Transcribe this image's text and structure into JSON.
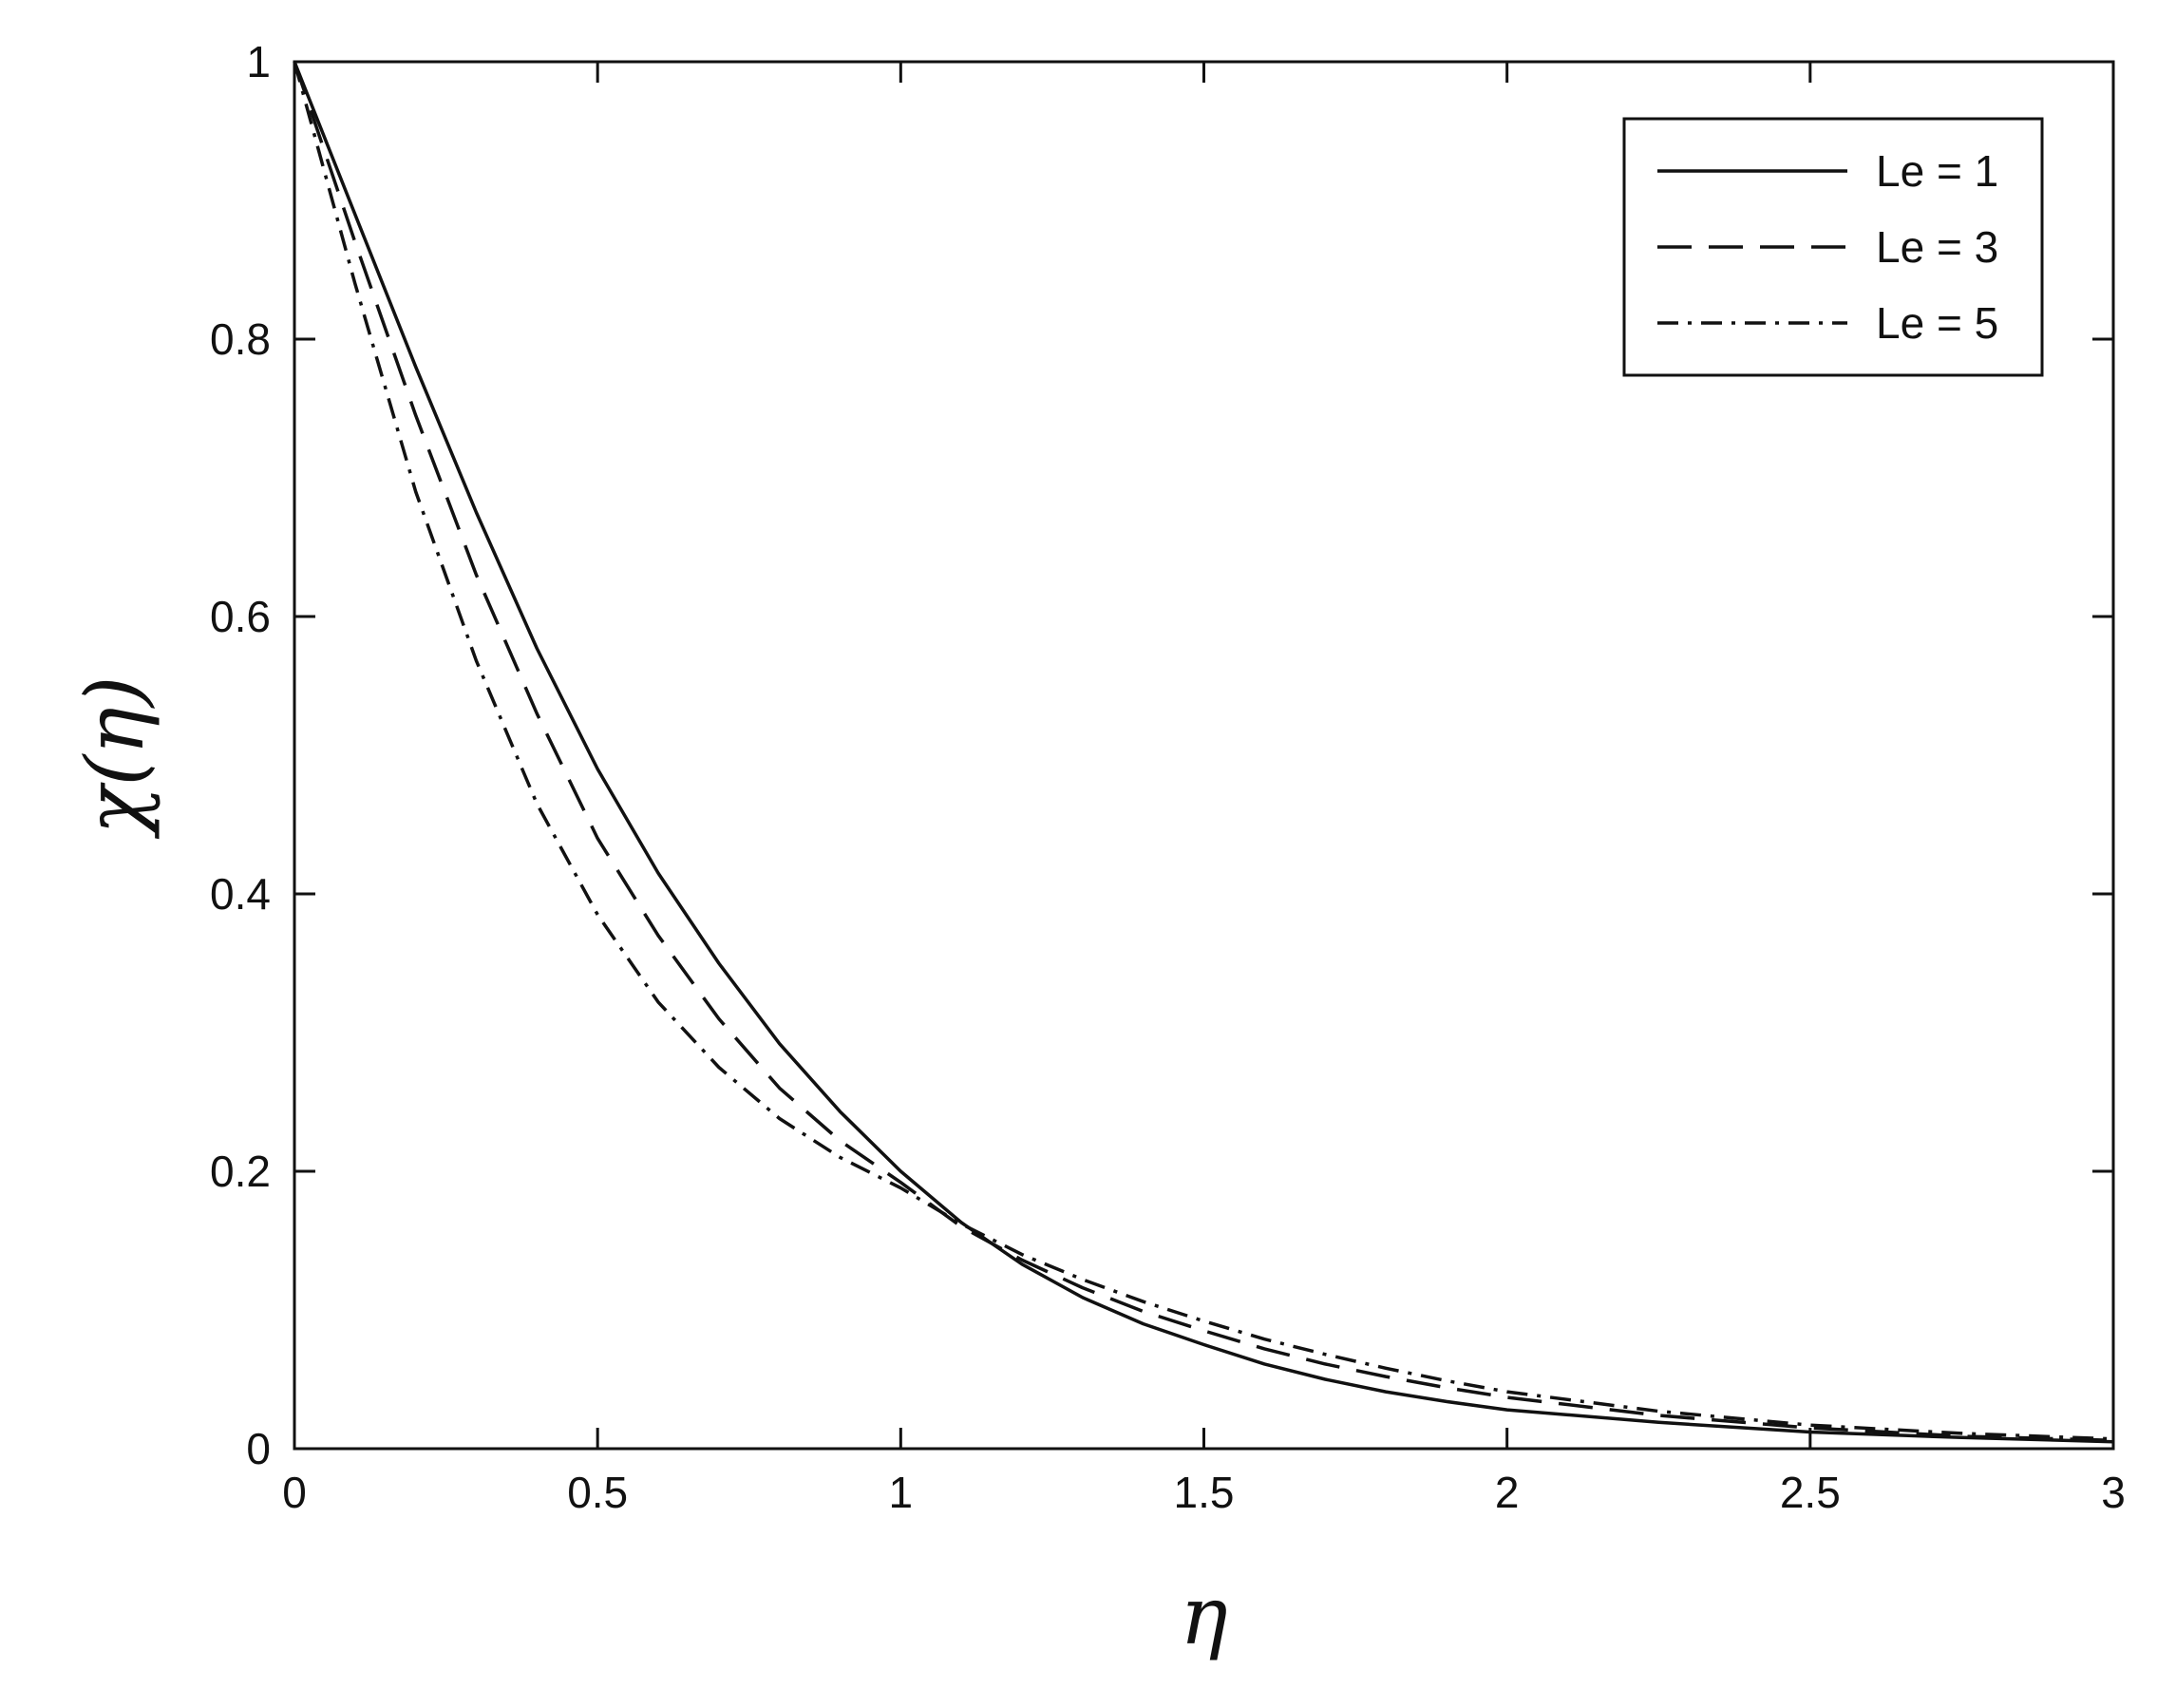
{
  "chart_data": {
    "type": "line",
    "title": "",
    "xlabel": "η",
    "ylabel": "χ(η)",
    "xlim": [
      0,
      3
    ],
    "ylim": [
      0,
      1
    ],
    "grid": false,
    "legend_position": "top-right",
    "x_ticks": [
      "0",
      "0.5",
      "1",
      "1.5",
      "2",
      "2.5",
      "3"
    ],
    "y_ticks": [
      "0",
      "0.2",
      "0.4",
      "0.6",
      "0.8",
      "1"
    ],
    "series": [
      {
        "name": "Le = 1",
        "line_style": "solid",
        "color": "#111111",
        "x": [
          0,
          0.1,
          0.2,
          0.3,
          0.4,
          0.5,
          0.6,
          0.7,
          0.8,
          0.9,
          1.0,
          1.1,
          1.2,
          1.3,
          1.4,
          1.5,
          1.6,
          1.7,
          1.8,
          1.9,
          2.0,
          2.25,
          2.5,
          2.75,
          3.0
        ],
        "y": [
          1.0,
          0.89,
          0.78,
          0.675,
          0.577,
          0.49,
          0.415,
          0.35,
          0.292,
          0.243,
          0.2,
          0.163,
          0.133,
          0.109,
          0.09,
          0.075,
          0.061,
          0.05,
          0.041,
          0.034,
          0.028,
          0.019,
          0.012,
          0.008,
          0.005
        ]
      },
      {
        "name": "Le = 3",
        "line_style": "dashed",
        "color": "#111111",
        "x": [
          0,
          0.1,
          0.2,
          0.3,
          0.4,
          0.5,
          0.6,
          0.7,
          0.8,
          0.9,
          1.0,
          1.1,
          1.2,
          1.3,
          1.4,
          1.5,
          1.6,
          1.7,
          1.8,
          1.9,
          2.0,
          2.25,
          2.5,
          2.75,
          3.0
        ],
        "y": [
          1.0,
          0.87,
          0.745,
          0.63,
          0.53,
          0.44,
          0.37,
          0.31,
          0.26,
          0.222,
          0.192,
          0.16,
          0.136,
          0.116,
          0.099,
          0.085,
          0.072,
          0.061,
          0.052,
          0.044,
          0.037,
          0.024,
          0.015,
          0.009,
          0.006
        ]
      },
      {
        "name": "Le = 5",
        "line_style": "dash-dot",
        "color": "#111111",
        "x": [
          0,
          0.1,
          0.2,
          0.3,
          0.4,
          0.5,
          0.6,
          0.7,
          0.8,
          0.9,
          1.0,
          1.1,
          1.2,
          1.3,
          1.4,
          1.5,
          1.6,
          1.7,
          1.8,
          1.9,
          2.0,
          2.25,
          2.5,
          2.75,
          3.0
        ],
        "y": [
          1.0,
          0.84,
          0.69,
          0.568,
          0.465,
          0.385,
          0.322,
          0.275,
          0.238,
          0.21,
          0.188,
          0.162,
          0.14,
          0.122,
          0.106,
          0.092,
          0.079,
          0.068,
          0.058,
          0.049,
          0.041,
          0.027,
          0.017,
          0.011,
          0.007
        ]
      }
    ]
  }
}
